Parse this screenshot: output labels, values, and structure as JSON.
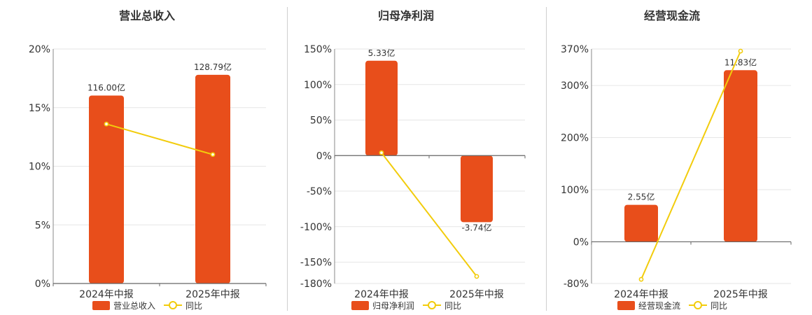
{
  "chart_data": [
    {
      "type": "bar",
      "title": "营业总收入",
      "categories": [
        "2024年中报",
        "2025年中报"
      ],
      "bar_series": {
        "name": "营业总收入",
        "labels": [
          "116.00亿",
          "128.79亿"
        ],
        "values": [
          116.0,
          128.79
        ]
      },
      "line_series": {
        "name": "同比",
        "values": [
          13.6,
          11.0
        ]
      },
      "y_ticks": [
        "20%",
        "15%",
        "10%",
        "5%",
        "0%"
      ],
      "ylim": [
        0,
        20
      ],
      "legend": "bottom",
      "colors": {
        "bar": "#e84e1b",
        "line": "#f2cc0c"
      }
    },
    {
      "type": "bar",
      "title": "归母净利润",
      "categories": [
        "2024年中报",
        "2025年中报"
      ],
      "bar_series": {
        "name": "归母净利润",
        "labels": [
          "5.33亿",
          "-3.74亿"
        ],
        "values": [
          5.33,
          -3.74
        ]
      },
      "line_series": {
        "name": "同比",
        "values": [
          4.0,
          -170.0
        ]
      },
      "y_ticks": [
        "150%",
        "100%",
        "50%",
        "0%",
        "-50%",
        "-100%",
        "-150%",
        "-180%"
      ],
      "ylim": [
        -180,
        150
      ],
      "legend": "bottom",
      "colors": {
        "bar": "#e84e1b",
        "line": "#f2cc0c"
      }
    },
    {
      "type": "bar",
      "title": "经营现金流",
      "categories": [
        "2024年中报",
        "2025年中报"
      ],
      "bar_series": {
        "name": "经营现金流",
        "labels": [
          "2.55亿",
          "11.83亿"
        ],
        "values": [
          2.55,
          11.83
        ]
      },
      "line_series": {
        "name": "同比",
        "values": [
          -72.0,
          366.0
        ]
      },
      "y_ticks": [
        "370%",
        "300%",
        "200%",
        "100%",
        "0%",
        "-80%"
      ],
      "ylim": [
        -80,
        370
      ],
      "legend": "bottom",
      "colors": {
        "bar": "#e84e1b",
        "line": "#f2cc0c"
      }
    }
  ]
}
